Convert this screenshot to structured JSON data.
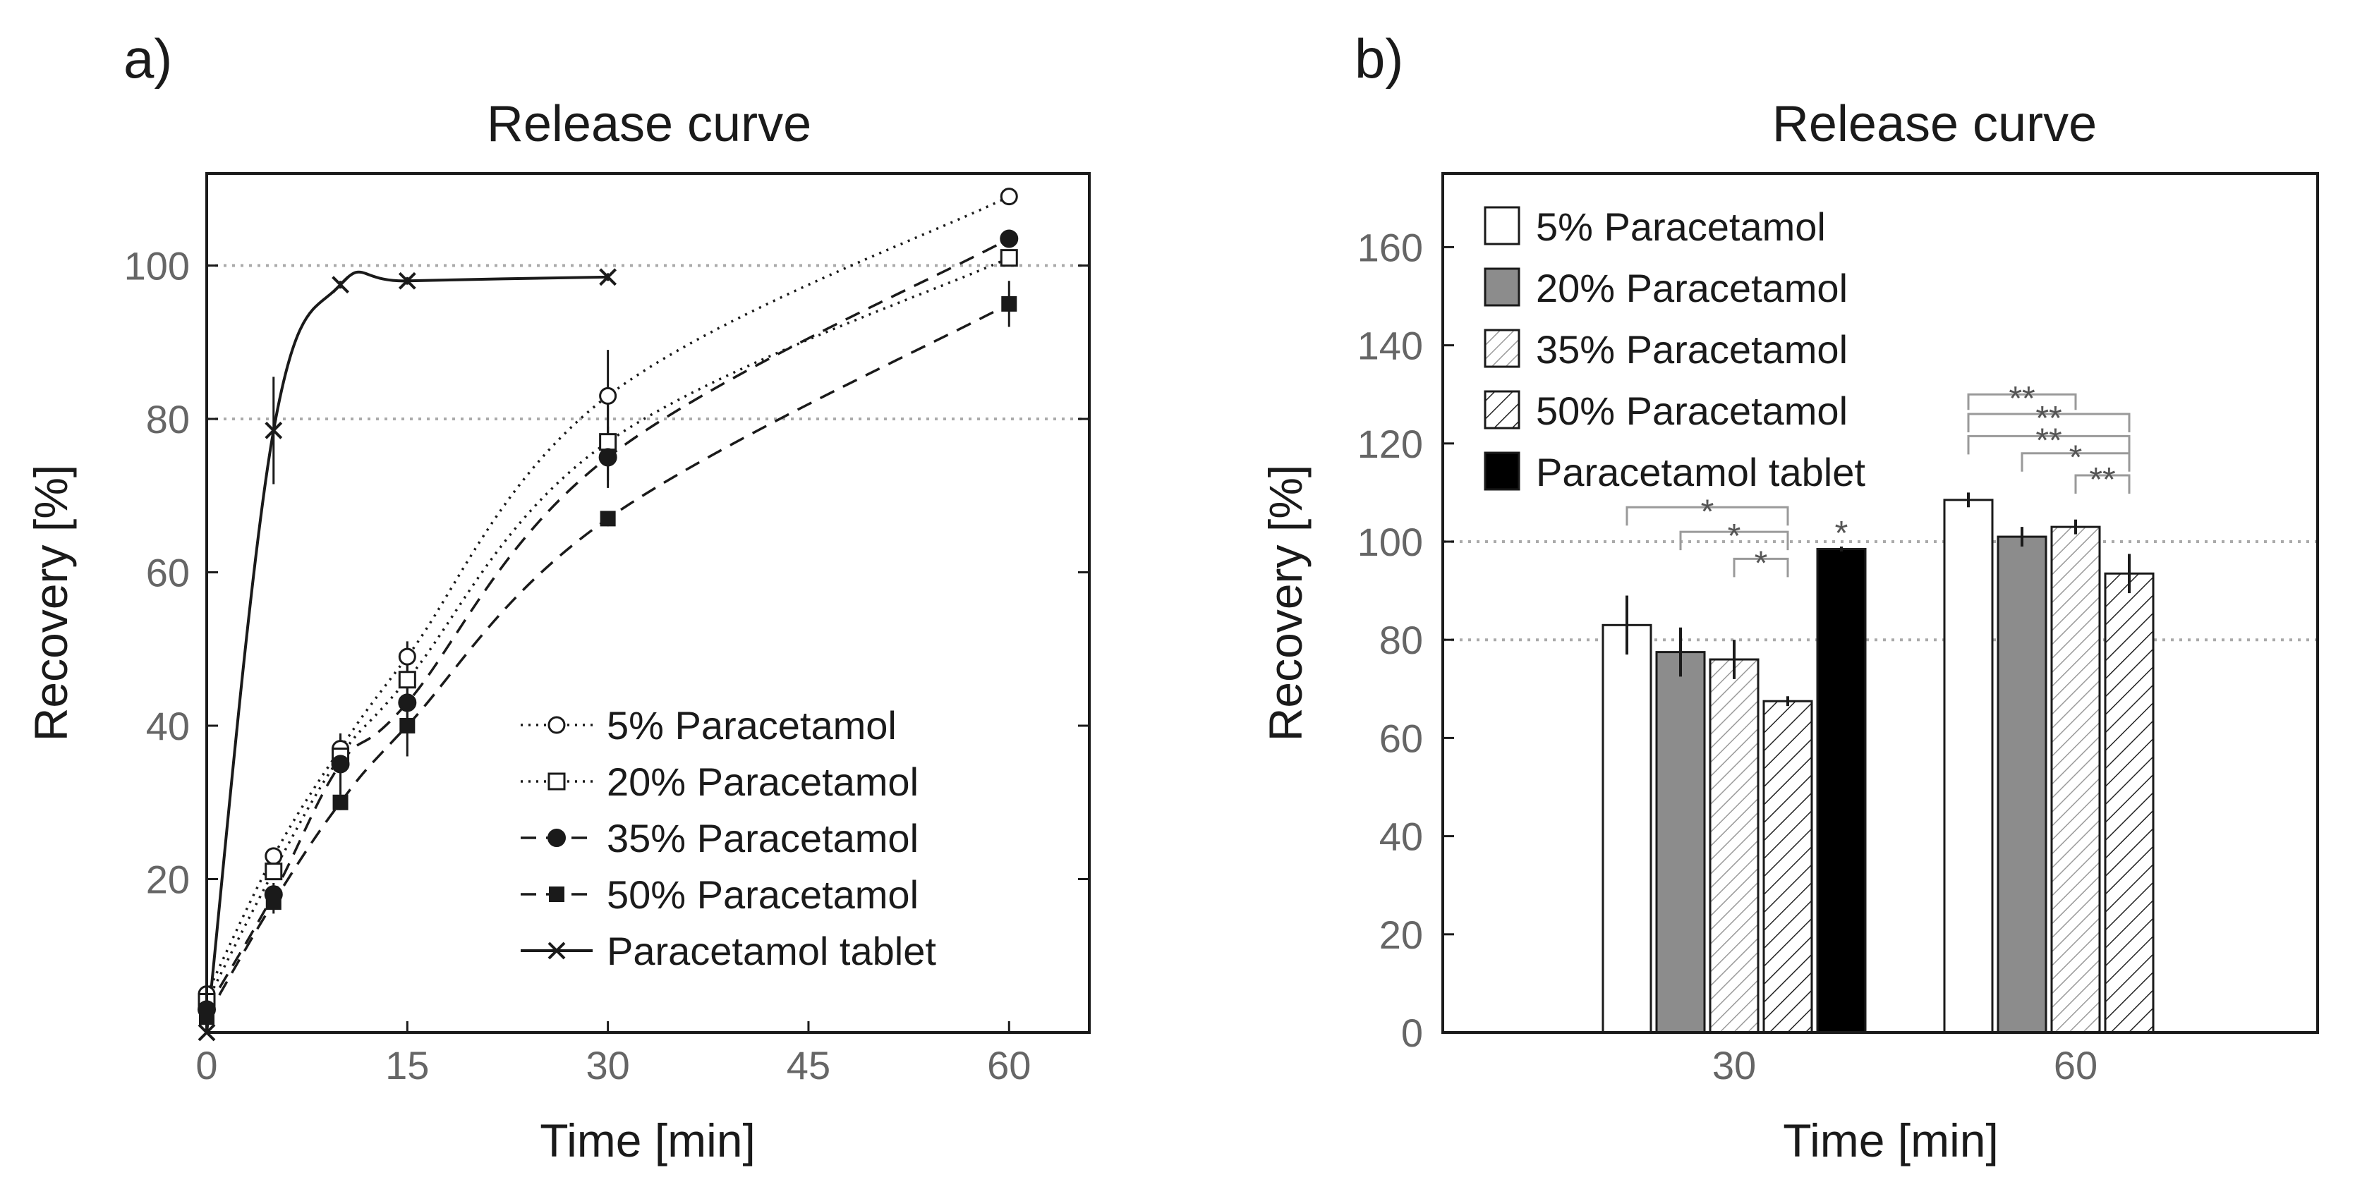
{
  "chart_data": [
    {
      "panel": "a)",
      "type": "line",
      "title": "Release curve",
      "xlabel": "Time [min]",
      "ylabel": "Recovery [%]",
      "xlim": [
        0,
        66
      ],
      "ylim": [
        0,
        112
      ],
      "xticks": [
        0,
        15,
        30,
        45,
        60
      ],
      "yticks": [
        20,
        40,
        60,
        80,
        100
      ],
      "reference_lines_y": [
        80,
        100
      ],
      "x": [
        0,
        5,
        10,
        15,
        30,
        60
      ],
      "series": [
        {
          "name": "5% Paracetamol",
          "marker": "open-circle",
          "dash": "dotted",
          "values": [
            5,
            23,
            37,
            49,
            83,
            109
          ],
          "errors": [
            0,
            1,
            1.5,
            2,
            6,
            1
          ]
        },
        {
          "name": "20% Paracetamol",
          "marker": "open-square",
          "dash": "dotted",
          "values": [
            4,
            21,
            36,
            46,
            77,
            101
          ],
          "errors": [
            0,
            1,
            1.5,
            2,
            5,
            1
          ]
        },
        {
          "name": "35% Paracetamol",
          "marker": "filled-circle",
          "dash": "dashed",
          "values": [
            3,
            18,
            35,
            43,
            75,
            103.5
          ],
          "errors": [
            0,
            1.5,
            4,
            2,
            4,
            1
          ]
        },
        {
          "name": "50% Paracetamol",
          "marker": "filled-square",
          "dash": "dashed",
          "values": [
            2,
            17,
            30,
            40,
            67,
            95
          ],
          "errors": [
            0,
            1.5,
            1,
            4,
            1,
            3
          ]
        },
        {
          "name": "Paracetamol tablet",
          "marker": "x",
          "dash": "solid",
          "x": [
            0,
            5,
            10,
            15,
            30
          ],
          "values": [
            0,
            78.5,
            97.5,
            98,
            98.5
          ],
          "errors": [
            0,
            7,
            0.5,
            0.5,
            0.5
          ]
        }
      ],
      "legend_position": "bottom-right"
    },
    {
      "panel": "b)",
      "type": "bar",
      "title": "Release curve",
      "xlabel": "Time [min]",
      "ylabel": "Recovery [%]",
      "ylim": [
        0,
        175
      ],
      "yticks": [
        0,
        20,
        40,
        60,
        80,
        100,
        120,
        140,
        160
      ],
      "reference_lines_y": [
        80,
        100
      ],
      "categories": [
        "30",
        "60"
      ],
      "series": [
        {
          "name": "5% Paracetamol",
          "fill": "white",
          "values": [
            83,
            108.5
          ],
          "errors": [
            6,
            1.5
          ]
        },
        {
          "name": "20% Paracetamol",
          "fill": "gray",
          "values": [
            77.5,
            101
          ],
          "errors": [
            5,
            2
          ]
        },
        {
          "name": "35% Paracetamol",
          "fill": "light-hatch",
          "values": [
            76,
            103
          ],
          "errors": [
            4,
            1.5
          ]
        },
        {
          "name": "50% Paracetamol",
          "fill": "dark-hatch",
          "values": [
            67.5,
            93.5
          ],
          "errors": [
            1,
            4
          ]
        },
        {
          "name": "Paracetamol tablet",
          "fill": "black",
          "values": [
            98.5,
            null
          ],
          "errors": [
            0.5,
            null
          ]
        }
      ],
      "significance": {
        "group_30": [
          "*",
          "*",
          "*"
        ],
        "tablet_30": "*",
        "group_60": [
          "**",
          "**",
          "**",
          "*",
          "**"
        ]
      },
      "legend_position": "top-left"
    }
  ]
}
